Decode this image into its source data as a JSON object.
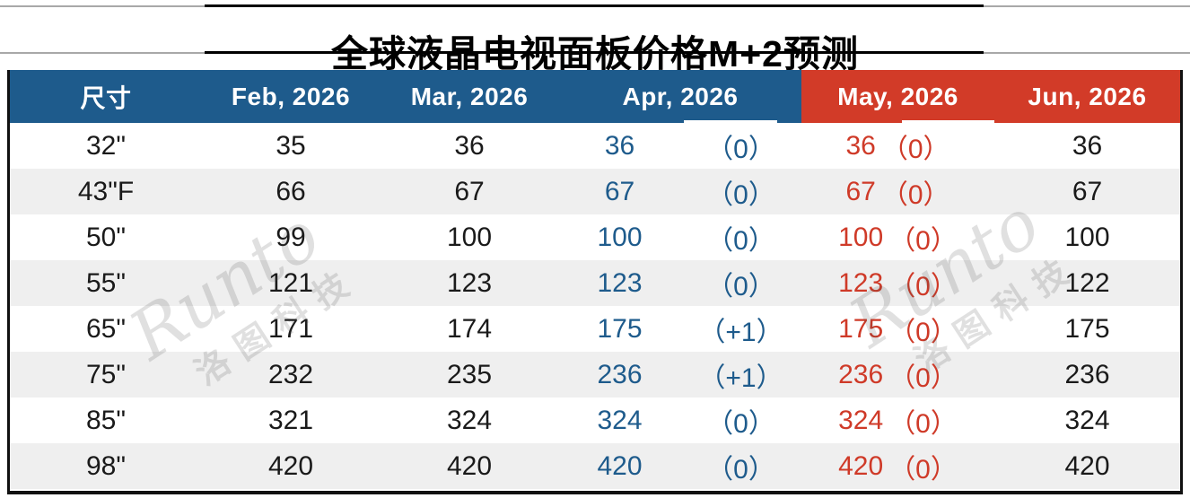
{
  "title": "全球液晶电视面板价格M+2预测",
  "watermark": {
    "brand": "Runto",
    "company": "洛图科技"
  },
  "colors": {
    "header_blue": "#1e5b8c",
    "header_red": "#d23b28",
    "apr_text_blue": "#1e5b8c",
    "may_text_red": "#cf3a28",
    "row_alternate": "#efefef"
  },
  "table": {
    "header": {
      "size": "尺寸",
      "months": [
        "Feb, 2026",
        "Mar, 2026",
        "Apr, 2026",
        "May, 2026",
        "Jun, 2026"
      ]
    },
    "rows": [
      {
        "size": "32\"",
        "feb": "35",
        "mar": "36",
        "apr": "36",
        "apr_chg": "（0）",
        "may": "36",
        "may_chg": "（0）",
        "jun": "36"
      },
      {
        "size": "43\"F",
        "feb": "66",
        "mar": "67",
        "apr": "67",
        "apr_chg": "（0）",
        "may": "67",
        "may_chg": "（0）",
        "jun": "67"
      },
      {
        "size": "50\"",
        "feb": "99",
        "mar": "100",
        "apr": "100",
        "apr_chg": "（0）",
        "may": "100",
        "may_chg": "（0）",
        "jun": "100"
      },
      {
        "size": "55\"",
        "feb": "121",
        "mar": "123",
        "apr": "123",
        "apr_chg": "（0）",
        "may": "123",
        "may_chg": "（0）",
        "jun": "122"
      },
      {
        "size": "65\"",
        "feb": "171",
        "mar": "174",
        "apr": "175",
        "apr_chg": "（+1）",
        "may": "175",
        "may_chg": "（0）",
        "jun": "175"
      },
      {
        "size": "75\"",
        "feb": "232",
        "mar": "235",
        "apr": "236",
        "apr_chg": "（+1）",
        "may": "236",
        "may_chg": "（0）",
        "jun": "236"
      },
      {
        "size": "85\"",
        "feb": "321",
        "mar": "324",
        "apr": "324",
        "apr_chg": "（0）",
        "may": "324",
        "may_chg": "（0）",
        "jun": "324"
      },
      {
        "size": "98\"",
        "feb": "420",
        "mar": "420",
        "apr": "420",
        "apr_chg": "（0）",
        "may": "420",
        "may_chg": "（0）",
        "jun": "420"
      }
    ]
  },
  "chart_data": {
    "type": "table",
    "title": "全球液晶电视面板价格M+2预测",
    "columns": [
      "尺寸",
      "Feb, 2026",
      "Mar, 2026",
      "Apr, 2026",
      "May, 2026",
      "Jun, 2026"
    ],
    "rows": [
      [
        "32\"",
        35,
        36,
        "36（0）",
        "36（0）",
        36
      ],
      [
        "43\"F",
        66,
        67,
        "67（0）",
        "67（0）",
        67
      ],
      [
        "50\"",
        99,
        100,
        "100（0）",
        "100（0）",
        100
      ],
      [
        "55\"",
        121,
        123,
        "123（0）",
        "123（0）",
        122
      ],
      [
        "65\"",
        171,
        174,
        "175（+1）",
        "175（0）",
        175
      ],
      [
        "75\"",
        232,
        235,
        "236（+1）",
        "236（0）",
        236
      ],
      [
        "85\"",
        321,
        324,
        "324（0）",
        "324（0）",
        324
      ],
      [
        "98\"",
        420,
        420,
        "420（0）",
        "420（0）",
        420
      ]
    ]
  }
}
